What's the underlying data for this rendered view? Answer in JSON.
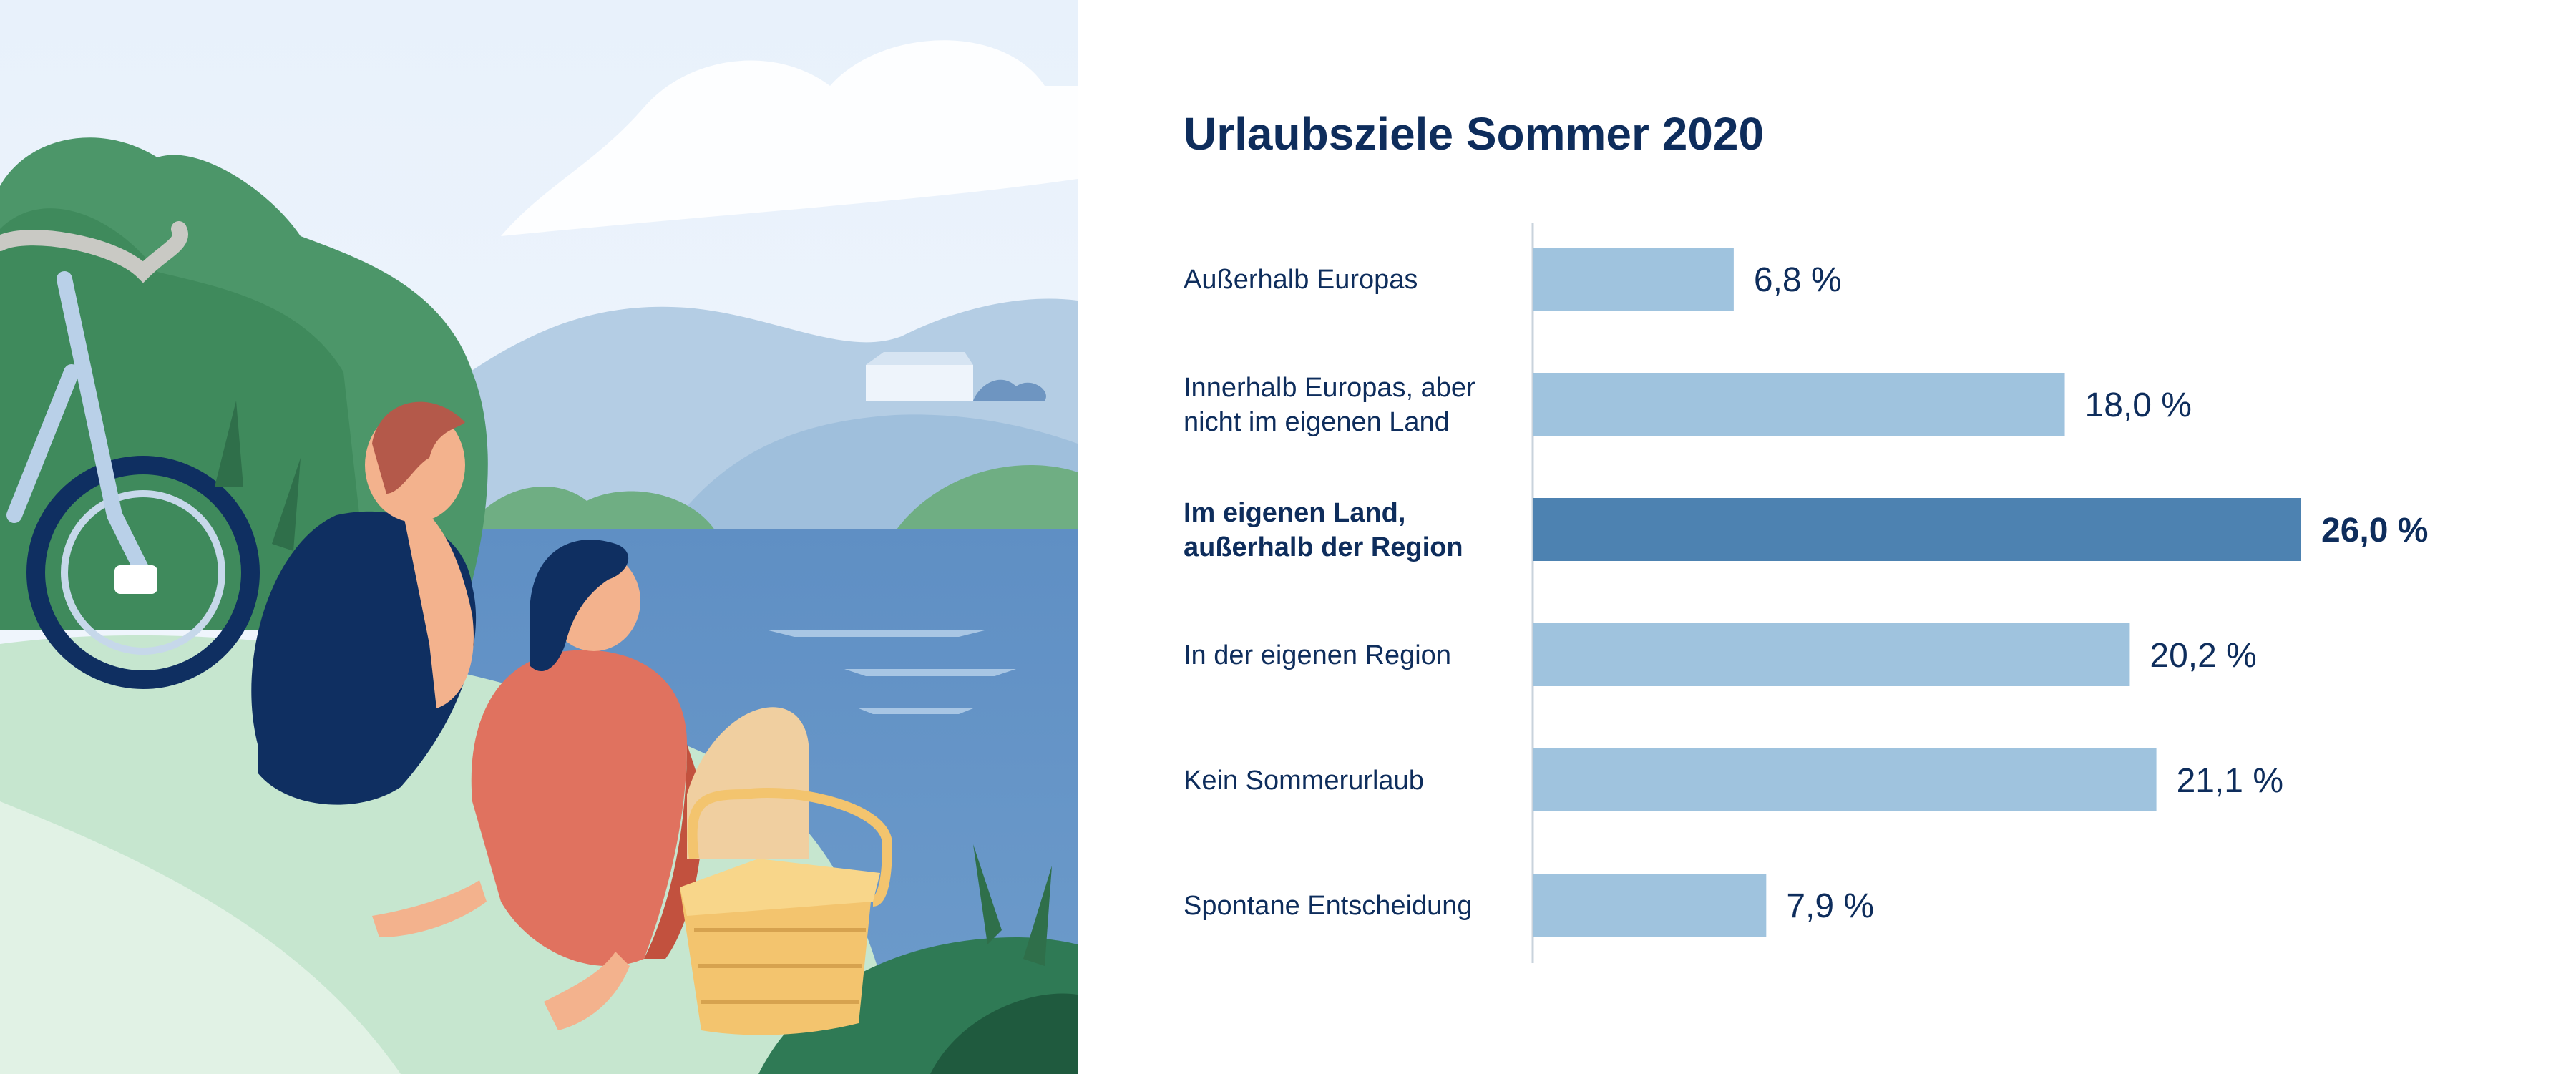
{
  "colors": {
    "bar": "#9fc3de",
    "bar_highlight": "#4d82b1",
    "text": "#0e2d5c",
    "axis": "#c9d3dc"
  },
  "illustration": {
    "icons": [
      "bicycle-icon",
      "picnic-basket-icon",
      "house-icon"
    ]
  },
  "chart_data": {
    "type": "bar",
    "orientation": "horizontal",
    "title": "Urlaubsziele Sommer 2020",
    "categories": [
      "Außerhalb Europas",
      "Innerhalb Europas, aber\nnicht im eigenen Land",
      "Im eigenen Land,\naußerhalb der Region",
      "In der eigenen Region",
      "Kein Sommerurlaub",
      "Spontane Entscheidung"
    ],
    "values": [
      6.8,
      18.0,
      26.0,
      20.2,
      21.1,
      7.9
    ],
    "value_labels": [
      "6,8 %",
      "18,0 %",
      "26,0 %",
      "20,2 %",
      "21,1 %",
      "7,9 %"
    ],
    "highlight_index": 2,
    "xlim": [
      0,
      26
    ],
    "grid": false,
    "legend": "none"
  }
}
